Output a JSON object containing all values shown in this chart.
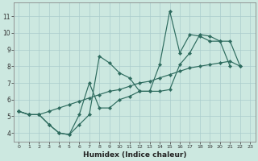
{
  "xlabel": "Humidex (Indice chaleur)",
  "background_color": "#cce8e0",
  "grid_color": "#aacccc",
  "line_color": "#2d6b5e",
  "xlim": [
    -0.5,
    23.5
  ],
  "ylim": [
    3.5,
    11.8
  ],
  "xticks": [
    0,
    1,
    2,
    3,
    4,
    5,
    6,
    7,
    8,
    9,
    10,
    11,
    12,
    13,
    14,
    15,
    16,
    17,
    18,
    19,
    20,
    21,
    22,
    23
  ],
  "yticks": [
    4,
    5,
    6,
    7,
    8,
    9,
    10,
    11
  ],
  "series": [
    {
      "x": [
        0,
        1,
        2,
        3,
        4,
        5,
        6,
        7,
        8,
        9,
        10,
        11,
        12,
        13,
        14,
        15,
        16,
        17,
        18,
        19,
        20,
        21
      ],
      "y": [
        5.3,
        5.1,
        5.1,
        4.5,
        4.0,
        3.9,
        4.5,
        5.1,
        8.6,
        8.2,
        7.6,
        7.3,
        6.5,
        6.5,
        8.1,
        11.3,
        8.8,
        9.9,
        9.8,
        9.5,
        9.5,
        8.0
      ]
    },
    {
      "x": [
        0,
        1,
        2,
        3,
        4,
        5,
        6,
        7,
        8,
        9,
        10,
        11,
        12,
        13,
        14,
        15,
        16,
        17,
        18,
        19,
        20,
        21,
        22
      ],
      "y": [
        5.3,
        5.1,
        5.1,
        5.3,
        5.5,
        5.7,
        5.9,
        6.1,
        6.3,
        6.5,
        6.6,
        6.8,
        7.0,
        7.1,
        7.3,
        7.5,
        7.7,
        7.9,
        8.0,
        8.1,
        8.2,
        8.3,
        8.0
      ]
    },
    {
      "x": [
        0,
        1,
        2,
        3,
        4,
        5,
        6,
        7,
        8,
        9,
        10,
        11,
        12,
        13,
        14,
        15,
        16,
        17,
        18,
        19,
        20,
        21,
        22
      ],
      "y": [
        5.3,
        5.1,
        5.1,
        4.5,
        4.0,
        3.9,
        5.1,
        7.0,
        5.5,
        5.5,
        6.0,
        6.2,
        6.5,
        6.5,
        6.5,
        6.6,
        8.1,
        8.8,
        9.9,
        9.8,
        9.5,
        9.5,
        8.0
      ]
    }
  ]
}
